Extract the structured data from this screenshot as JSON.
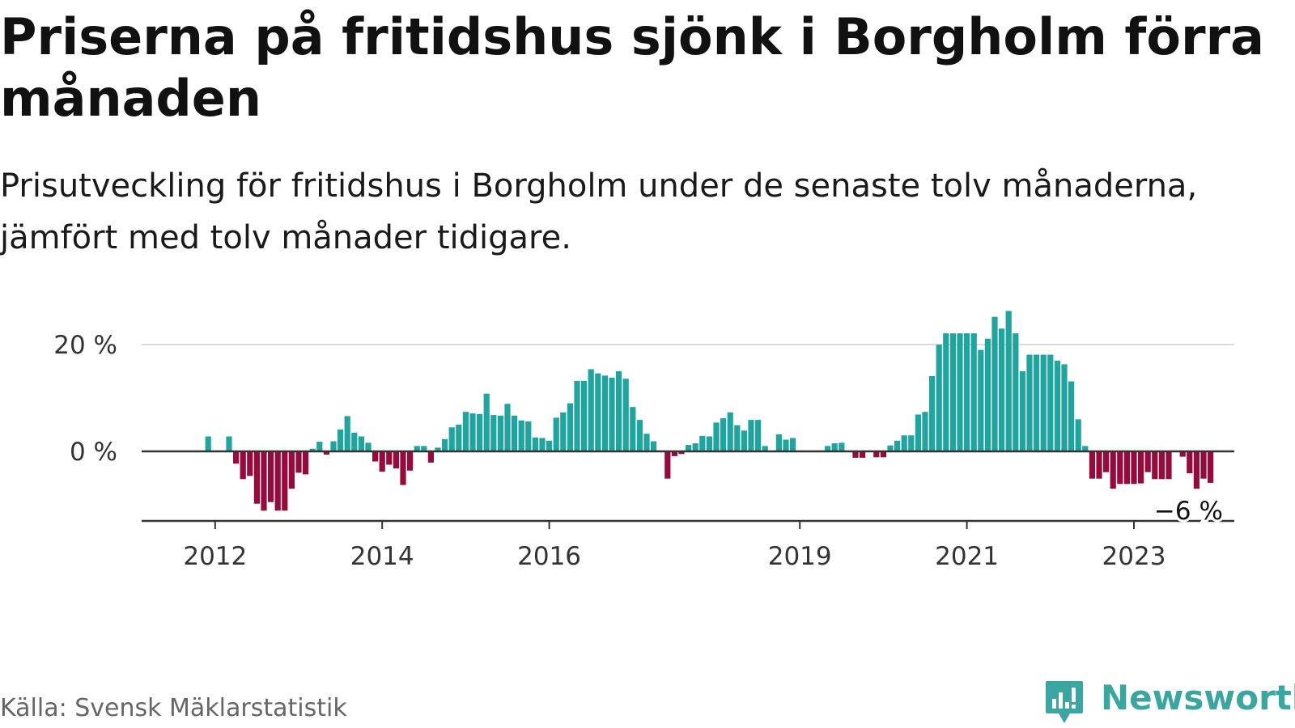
{
  "title": "Priserna på fritidshus sjönk i Borgholm förra månaden",
  "subtitle": "Prisutveckling för fritidshus i Borgholm under de senaste tolv månaderna, jämfört med tolv månader tidigare.",
  "source": "Källa: Svensk Mäklarstatistik",
  "brand": {
    "name": "Newsworthy",
    "icon": "newsworthy-logo-icon"
  },
  "colors": {
    "positive": "#1fa5a0",
    "negative": "#990a3c",
    "grid": "#dcdcdc",
    "axis": "#333333"
  },
  "chart_data": {
    "type": "bar",
    "title": "Priserna på fritidshus sjönk i Borgholm förra månaden",
    "xlabel": "",
    "ylabel": "",
    "x_start": "2011-05",
    "x_end": "2024-02",
    "ylim": [
      -13,
      27
    ],
    "y_ticks": [
      {
        "value": 0,
        "label": "0 %"
      },
      {
        "value": 20,
        "label": "20 %"
      }
    ],
    "x_ticks": [
      {
        "label": "2012",
        "index": 8
      },
      {
        "label": "2014",
        "index": 32
      },
      {
        "label": "2016",
        "index": 56
      },
      {
        "label": "2019",
        "index": 92
      },
      {
        "label": "2021",
        "index": 116
      },
      {
        "label": "2023",
        "index": 140
      }
    ],
    "annotation": {
      "text": "−6 %",
      "index": 149
    },
    "values": [
      null,
      null,
      null,
      null,
      null,
      null,
      null,
      2.8,
      null,
      null,
      2.8,
      -2.3,
      -5.2,
      -4.6,
      -9.8,
      -11.1,
      -9.5,
      -11.1,
      -11.1,
      -7.0,
      -4.0,
      -4.3,
      0.5,
      1.8,
      -0.6,
      1.9,
      4.1,
      6.6,
      3.5,
      2.8,
      1.6,
      -1.9,
      -3.8,
      -2.5,
      -3.2,
      -6.3,
      -3.6,
      1.0,
      1.0,
      -2.1,
      0.7,
      2.3,
      4.5,
      5.0,
      7.4,
      7.1,
      7.0,
      10.8,
      6.8,
      6.7,
      8.9,
      6.7,
      5.8,
      5.6,
      2.6,
      2.5,
      2.0,
      6.3,
      7.3,
      9.0,
      13.2,
      13.2,
      15.4,
      14.6,
      14.2,
      13.8,
      15.0,
      13.6,
      8.3,
      5.9,
      3.3,
      1.9,
      -0.1,
      -5.1,
      -0.9,
      -0.5,
      1.2,
      1.5,
      2.9,
      2.8,
      5.4,
      6.2,
      7.3,
      4.9,
      3.9,
      5.9,
      5.9,
      1.0,
      null,
      3.2,
      2.2,
      2.5,
      null,
      null,
      null,
      null,
      1.0,
      1.5,
      1.6,
      null,
      -1.2,
      -1.2,
      null,
      -1.1,
      -1.1,
      1.1,
      2.0,
      3.0,
      3.0,
      6.9,
      7.4,
      14.1,
      20.0,
      22.1,
      22.1,
      22.1,
      22.1,
      22.1,
      19.0,
      21.1,
      25.2,
      23.0,
      26.3,
      22.1,
      15.0,
      18.1,
      18.1,
      18.1,
      18.1,
      17.0,
      16.3,
      13.1,
      6.0,
      1.0,
      -5.1,
      -5.1,
      -3.9,
      -7.0,
      -6.1,
      -6.1,
      -6.1,
      -6.0,
      -3.9,
      -5.2,
      -5.2,
      -5.2,
      null,
      -1.0,
      -4.1,
      -7.0,
      -5.1,
      -5.9
    ]
  }
}
